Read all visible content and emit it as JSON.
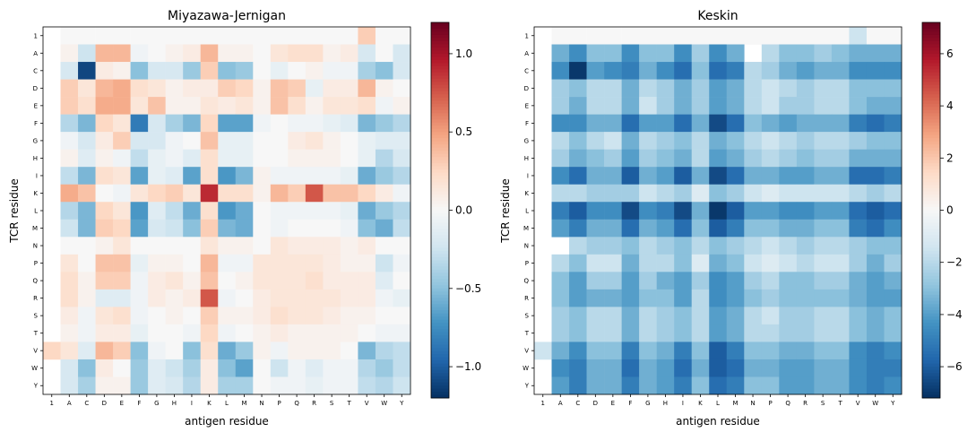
{
  "chart_data": [
    {
      "type": "heatmap",
      "title": "Miyazawa-Jernigan",
      "xlabel": "antigen residue",
      "ylabel": "TCR residue",
      "x_labels": [
        "1",
        "A",
        "C",
        "D",
        "E",
        "F",
        "G",
        "H",
        "I",
        "K",
        "L",
        "M",
        "N",
        "P",
        "Q",
        "R",
        "S",
        "T",
        "V",
        "W",
        "Y"
      ],
      "y_labels": [
        "1",
        "A",
        "C",
        "D",
        "E",
        "F",
        "G",
        "H",
        "I",
        "K",
        "L",
        "M",
        "N",
        "P",
        "Q",
        "R",
        "S",
        "T",
        "V",
        "W",
        "Y"
      ],
      "colormap": "RdBu_r",
      "vmin": -1.2,
      "vmax": 1.2,
      "colorbar_ticks": [
        1.0,
        0.5,
        0.0,
        -0.5,
        -1.0
      ],
      "colorbar_tick_labels": [
        "1.0",
        "0.5",
        "0.0",
        "−0.5",
        "−1.0"
      ],
      "values": [
        [
          null,
          0,
          0,
          0,
          0,
          0,
          0,
          0,
          0,
          0,
          0,
          0,
          0,
          0,
          0,
          0,
          0,
          0,
          0.3,
          0,
          0
        ],
        [
          null,
          0.05,
          -0.25,
          0.4,
          0.4,
          -0.05,
          0.0,
          0.05,
          0.1,
          0.4,
          0.05,
          0.05,
          0.0,
          0.15,
          0.2,
          0.2,
          0.05,
          0.1,
          -0.2,
          0.0,
          -0.2
        ],
        [
          null,
          -0.2,
          -1.1,
          0.1,
          0.05,
          -0.5,
          -0.2,
          -0.2,
          -0.45,
          0.3,
          -0.5,
          -0.45,
          0.0,
          -0.1,
          0.0,
          0.05,
          -0.05,
          -0.05,
          -0.4,
          -0.5,
          -0.2
        ],
        [
          null,
          0.3,
          0.15,
          0.4,
          0.45,
          0.2,
          0.15,
          0.05,
          0.1,
          0.1,
          0.3,
          0.25,
          0.05,
          0.35,
          0.3,
          -0.1,
          0.1,
          0.1,
          0.4,
          0.05,
          0.0
        ],
        [
          null,
          0.3,
          0.2,
          0.45,
          0.45,
          0.15,
          0.35,
          0.05,
          0.05,
          0.15,
          0.1,
          0.15,
          0.05,
          0.35,
          0.2,
          0.05,
          0.15,
          0.15,
          0.2,
          -0.05,
          0.05
        ],
        [
          null,
          -0.35,
          -0.55,
          0.25,
          0.15,
          -0.85,
          -0.2,
          -0.4,
          -0.55,
          0.25,
          -0.65,
          -0.65,
          -0.05,
          0.0,
          -0.05,
          -0.05,
          -0.1,
          -0.15,
          -0.55,
          -0.45,
          -0.35
        ],
        [
          null,
          -0.05,
          -0.2,
          0.1,
          0.3,
          -0.2,
          -0.2,
          -0.05,
          0.0,
          0.35,
          -0.1,
          -0.1,
          0.0,
          0.0,
          0.1,
          0.15,
          0.05,
          0.0,
          -0.1,
          -0.15,
          -0.15
        ],
        [
          null,
          0.05,
          -0.15,
          0.05,
          -0.05,
          -0.3,
          -0.1,
          -0.05,
          -0.15,
          0.2,
          -0.1,
          -0.1,
          0.0,
          0.0,
          0.05,
          0.05,
          0.05,
          0.0,
          -0.1,
          -0.35,
          -0.2
        ],
        [
          null,
          -0.3,
          -0.55,
          0.2,
          0.15,
          -0.65,
          -0.1,
          -0.15,
          -0.65,
          0.2,
          -0.7,
          -0.55,
          0.05,
          -0.05,
          -0.05,
          -0.05,
          -0.05,
          -0.1,
          -0.6,
          -0.45,
          -0.35
        ],
        [
          null,
          0.45,
          0.35,
          0.0,
          -0.05,
          0.15,
          0.25,
          0.3,
          0.15,
          0.9,
          0.2,
          0.2,
          0.05,
          0.4,
          0.3,
          0.75,
          0.35,
          0.35,
          0.25,
          0.1,
          -0.05
        ],
        [
          null,
          -0.35,
          -0.55,
          0.25,
          0.15,
          -0.7,
          -0.15,
          -0.3,
          -0.6,
          0.2,
          -0.7,
          -0.6,
          0.0,
          -0.05,
          -0.05,
          -0.05,
          -0.05,
          -0.1,
          -0.6,
          -0.45,
          -0.35
        ],
        [
          null,
          -0.25,
          -0.55,
          0.3,
          0.25,
          -0.65,
          -0.2,
          -0.25,
          -0.5,
          0.3,
          -0.55,
          -0.6,
          0.0,
          -0.05,
          0.0,
          0.0,
          0.0,
          -0.05,
          -0.5,
          -0.6,
          -0.3
        ],
        [
          null,
          0.0,
          0.0,
          0.05,
          0.15,
          0.0,
          0.0,
          0.0,
          0.0,
          0.15,
          0.05,
          0.05,
          0.0,
          0.15,
          0.1,
          0.1,
          0.1,
          0.05,
          0.1,
          0.0,
          0.0
        ],
        [
          null,
          0.15,
          0.0,
          0.35,
          0.35,
          -0.1,
          0.05,
          0.05,
          0.0,
          0.4,
          -0.05,
          -0.05,
          0.15,
          0.15,
          0.15,
          0.15,
          0.1,
          0.05,
          0.05,
          -0.25,
          -0.05
        ],
        [
          null,
          0.2,
          0.05,
          0.3,
          0.3,
          -0.05,
          0.1,
          0.15,
          0.05,
          0.35,
          0.0,
          0.05,
          0.15,
          0.15,
          0.15,
          0.2,
          0.1,
          0.1,
          0.1,
          -0.15,
          0.0
        ],
        [
          null,
          0.2,
          0.05,
          -0.15,
          -0.15,
          -0.05,
          0.1,
          0.05,
          0.1,
          0.75,
          -0.05,
          0.0,
          0.1,
          0.15,
          0.15,
          0.15,
          0.15,
          0.1,
          0.1,
          -0.05,
          -0.1
        ],
        [
          null,
          0.1,
          -0.05,
          0.15,
          0.2,
          -0.05,
          0.0,
          0.05,
          0.0,
          0.3,
          0.05,
          0.05,
          0.1,
          0.2,
          0.15,
          0.15,
          0.1,
          0.05,
          0.05,
          0.0,
          0.0
        ],
        [
          null,
          0.05,
          -0.05,
          0.1,
          0.1,
          -0.1,
          0.0,
          0.0,
          -0.05,
          0.25,
          -0.05,
          0.0,
          0.05,
          0.1,
          0.05,
          0.05,
          0.05,
          0.05,
          0.0,
          -0.05,
          -0.05
        ],
        [
          0.25,
          0.15,
          -0.15,
          0.4,
          0.3,
          -0.5,
          -0.05,
          0.0,
          -0.5,
          0.2,
          -0.6,
          -0.45,
          0.05,
          -0.05,
          0.05,
          0.05,
          0.05,
          0.0,
          -0.55,
          -0.35,
          -0.3
        ],
        [
          null,
          -0.2,
          -0.5,
          0.1,
          0.0,
          -0.45,
          -0.15,
          -0.25,
          -0.4,
          0.1,
          -0.5,
          -0.65,
          0.0,
          -0.25,
          -0.05,
          -0.15,
          -0.05,
          -0.05,
          -0.35,
          -0.45,
          -0.3
        ],
        [
          null,
          -0.2,
          -0.4,
          0.05,
          0.05,
          -0.45,
          -0.15,
          -0.2,
          -0.35,
          0.1,
          -0.4,
          -0.4,
          0.0,
          -0.05,
          -0.05,
          -0.1,
          -0.05,
          -0.05,
          -0.3,
          -0.35,
          -0.25
        ]
      ]
    },
    {
      "type": "heatmap",
      "title": "Keskin",
      "xlabel": "antigen residue",
      "ylabel": "TCR residue",
      "x_labels": [
        "1",
        "A",
        "C",
        "D",
        "E",
        "F",
        "G",
        "H",
        "I",
        "K",
        "L",
        "M",
        "N",
        "P",
        "Q",
        "R",
        "S",
        "T",
        "V",
        "W",
        "Y"
      ],
      "y_labels": [
        "1",
        "A",
        "C",
        "D",
        "E",
        "F",
        "G",
        "H",
        "I",
        "K",
        "L",
        "M",
        "N",
        "P",
        "Q",
        "R",
        "S",
        "T",
        "V",
        "W",
        "Y"
      ],
      "colormap": "RdBu_r",
      "vmin": -7.2,
      "vmax": 7.2,
      "colorbar_ticks": [
        6,
        4,
        2,
        0,
        -2,
        -4,
        -6
      ],
      "colorbar_tick_labels": [
        "6",
        "4",
        "2",
        "0",
        "−2",
        "−4",
        "−6"
      ],
      "values": [
        [
          null,
          0,
          0,
          0,
          0,
          0,
          0,
          0,
          0,
          0,
          0,
          0,
          0,
          0,
          0,
          0,
          0,
          0,
          -1.5,
          0,
          0
        ],
        [
          null,
          -3.5,
          -4.5,
          -3,
          -3,
          -4.5,
          -3,
          -3,
          -4.5,
          -2.5,
          -4.5,
          -3.5,
          null,
          -2,
          -3,
          -3,
          -2.5,
          -3,
          -3.5,
          -3.5,
          -3.5
        ],
        [
          null,
          -4.5,
          -7,
          -4,
          -4.5,
          -5,
          -3.5,
          -4.5,
          -5.5,
          -3,
          -5.5,
          -5,
          -2,
          -2.5,
          -3.5,
          -4,
          -3.5,
          -3.5,
          -4.5,
          -4.5,
          -4.5
        ],
        [
          null,
          -2.5,
          -3,
          -2,
          -2,
          -3.5,
          -2,
          -2.5,
          -3.5,
          -2.5,
          -4,
          -3.5,
          -2,
          -1.5,
          -2,
          -2.5,
          -2,
          -2,
          -3,
          -3,
          -3
        ],
        [
          null,
          -2.5,
          -3.5,
          -2,
          -2,
          -3.5,
          -1.5,
          -2.5,
          -3.5,
          -2.5,
          -4,
          -3.5,
          -2,
          -1.5,
          -2.5,
          -2.5,
          -2,
          -2,
          -3,
          -3.5,
          -3.5
        ],
        [
          null,
          -4.5,
          -4.5,
          -3.5,
          -3.5,
          -5.5,
          -4,
          -4,
          -5.5,
          -3.5,
          -6.5,
          -5.5,
          -3,
          -3.5,
          -4,
          -3.5,
          -3.5,
          -3.5,
          -5,
          -5.5,
          -5
        ],
        [
          null,
          -2,
          -3,
          -2,
          -1.5,
          -3.5,
          -2,
          -2.5,
          -3,
          -2,
          -3.5,
          -3,
          -2,
          -1.5,
          -2,
          -2.5,
          -2,
          -2,
          -2.5,
          -3,
          -3
        ],
        [
          null,
          -2.5,
          -3.5,
          -3,
          -2.5,
          -4,
          -2.5,
          -3,
          -3.5,
          -2,
          -4,
          -3.5,
          -2.5,
          -2,
          -2.5,
          -3,
          -2.5,
          -2.5,
          -3.5,
          -3.5,
          -3.5
        ],
        [
          null,
          -4.5,
          -5.5,
          -3.5,
          -3.5,
          -6,
          -3.5,
          -4,
          -6,
          -3.5,
          -6.5,
          -5.5,
          -3.5,
          -3.5,
          -4,
          -4,
          -3.5,
          -3.5,
          -5.5,
          -5.5,
          -5
        ],
        [
          null,
          -2,
          -2,
          -2.5,
          -2.5,
          -2.5,
          -1.5,
          -2,
          -2.5,
          -1,
          -3,
          -2.5,
          -1.5,
          -1,
          -1.5,
          -1.5,
          -1.5,
          -1.5,
          -2,
          -2.5,
          -2
        ],
        [
          null,
          -5,
          -6,
          -4.5,
          -4.5,
          -6.5,
          -4.5,
          -5,
          -6.5,
          -3.5,
          -7,
          -6,
          -4,
          -4,
          -4.5,
          -4.5,
          -4,
          -4,
          -5.5,
          -6,
          -5.5
        ],
        [
          null,
          -4,
          -5,
          -3.5,
          -3.5,
          -5.5,
          -3.5,
          -4,
          -5.5,
          -3,
          -6,
          -5,
          -3,
          -3,
          -3.5,
          -3.5,
          -3,
          -3,
          -5,
          -5.5,
          -4.5
        ],
        [
          null,
          null,
          -2,
          -2.5,
          -2.5,
          -3,
          -2,
          -2.5,
          -3,
          -2,
          -3,
          -2.5,
          -2,
          -1.5,
          -2,
          -2.5,
          -2,
          -2,
          -2.5,
          -3,
          -3
        ],
        [
          null,
          -2,
          -3,
          -1.5,
          -1.5,
          -3.5,
          -2,
          -2,
          -3,
          -1,
          -3.5,
          -3,
          -1.5,
          -1,
          -1.5,
          -2,
          -1.5,
          -1.5,
          -2.5,
          -3.5,
          -2.5
        ],
        [
          null,
          -3,
          -4,
          -2.5,
          -2.5,
          -4,
          -2.5,
          -3.5,
          -4,
          -2.5,
          -4.5,
          -4,
          -2.5,
          -2,
          -3,
          -3,
          -2.5,
          -2.5,
          -3.5,
          -4,
          -3.5
        ],
        [
          null,
          -3,
          -4,
          -3.5,
          -3.5,
          -4,
          -3,
          -3,
          -4,
          -2,
          -4.5,
          -4,
          -3,
          -2.5,
          -3,
          -3,
          -3,
          -3,
          -3.5,
          -4,
          -4
        ],
        [
          null,
          -2.5,
          -3,
          -2,
          -2,
          -3.5,
          -2,
          -2.5,
          -3,
          -2,
          -4,
          -3.5,
          -2,
          -1.5,
          -2.5,
          -2.5,
          -2,
          -2,
          -3,
          -3.5,
          -3
        ],
        [
          null,
          -2.5,
          -3,
          -2,
          -2,
          -3.5,
          -2,
          -2.5,
          -3,
          -2,
          -4,
          -3.5,
          -2,
          -2,
          -2.5,
          -2.5,
          -2,
          -2,
          -3,
          -3.5,
          -3
        ],
        [
          -1.5,
          -3.5,
          -4.5,
          -3,
          -3,
          -5,
          -3,
          -3.5,
          -5,
          -3,
          -6,
          -5,
          -3,
          -3,
          -3.5,
          -3.5,
          -3,
          -3,
          -4.5,
          -5,
          -4.5
        ],
        [
          null,
          -4.5,
          -5,
          -3.5,
          -3.5,
          -5.5,
          -3.5,
          -4,
          -5.5,
          -3.5,
          -6,
          -5.5,
          -3.5,
          -3.5,
          -4,
          -4,
          -3.5,
          -3.5,
          -4.5,
          -5,
          -5
        ],
        [
          null,
          -4,
          -5,
          -3.5,
          -3.5,
          -5,
          -3.5,
          -4,
          -5,
          -3,
          -5.5,
          -5,
          -3,
          -3,
          -4,
          -4,
          -3.5,
          -3.5,
          -4.5,
          -5,
          -4.5
        ]
      ]
    }
  ]
}
